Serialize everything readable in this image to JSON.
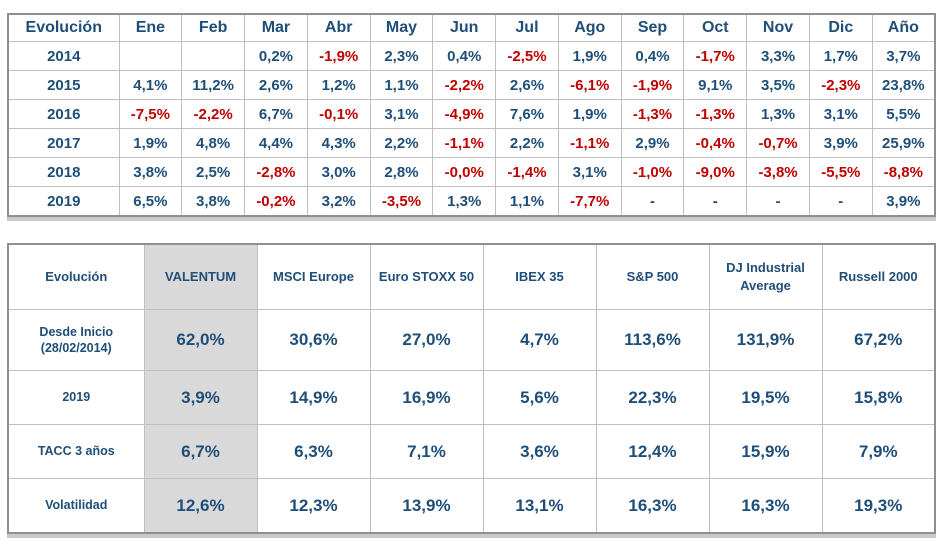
{
  "colors": {
    "positive_text": "#1f4e79",
    "negative_text": "#c00000",
    "highlight_bg": "#d9d9d9",
    "grid_line": "#bfbfbf",
    "outer_border": "#8f8f8f"
  },
  "monthly_table": {
    "title_header": "Evolución",
    "column_headers": [
      "Evolución",
      "Ene",
      "Feb",
      "Mar",
      "Abr",
      "May",
      "Jun",
      "Jul",
      "Ago",
      "Sep",
      "Oct",
      "Nov",
      "Dic",
      "Año"
    ],
    "rows": [
      {
        "year": "2014",
        "values": [
          "",
          "",
          "0,2%",
          "-1,9%",
          "2,3%",
          "0,4%",
          "-2,5%",
          "1,9%",
          "0,4%",
          "-1,7%",
          "3,3%",
          "1,7%",
          "3,7%"
        ]
      },
      {
        "year": "2015",
        "values": [
          "4,1%",
          "11,2%",
          "2,6%",
          "1,2%",
          "1,1%",
          "-2,2%",
          "2,6%",
          "-6,1%",
          "-1,9%",
          "9,1%",
          "3,5%",
          "-2,3%",
          "23,8%"
        ]
      },
      {
        "year": "2016",
        "values": [
          "-7,5%",
          "-2,2%",
          "6,7%",
          "-0,1%",
          "3,1%",
          "-4,9%",
          "7,6%",
          "1,9%",
          "-1,3%",
          "-1,3%",
          "1,3%",
          "3,1%",
          "5,5%"
        ]
      },
      {
        "year": "2017",
        "values": [
          "1,9%",
          "4,8%",
          "4,4%",
          "4,3%",
          "2,2%",
          "-1,1%",
          "2,2%",
          "-1,1%",
          "2,9%",
          "-0,4%",
          "-0,7%",
          "3,9%",
          "25,9%"
        ]
      },
      {
        "year": "2018",
        "values": [
          "3,8%",
          "2,5%",
          "-2,8%",
          "3,0%",
          "2,8%",
          "-0,0%",
          "-1,4%",
          "3,1%",
          "-1,0%",
          "-9,0%",
          "-3,8%",
          "-5,5%",
          "-8,8%"
        ]
      },
      {
        "year": "2019",
        "values": [
          "6,5%",
          "3,8%",
          "-0,2%",
          "3,2%",
          "-3,5%",
          "1,3%",
          "1,1%",
          "-7,7%",
          "-",
          "-",
          "-",
          "-",
          "3,9%"
        ]
      }
    ]
  },
  "comparison_table": {
    "column_headers": [
      "Evolución",
      "VALENTUM",
      "MSCI Europe",
      "Euro STOXX 50",
      "IBEX 35",
      "S&P 500",
      "DJ Industrial Average",
      "Russell 2000"
    ],
    "highlighted_column": "VALENTUM",
    "rows": [
      {
        "label_lines": [
          "Desde Inicio",
          "(28/02/2014)"
        ],
        "tall": true,
        "values": [
          "62,0%",
          "30,6%",
          "27,0%",
          "4,7%",
          "113,6%",
          "131,9%",
          "67,2%"
        ]
      },
      {
        "label_lines": [
          "2019"
        ],
        "tall": false,
        "values": [
          "3,9%",
          "14,9%",
          "16,9%",
          "5,6%",
          "22,3%",
          "19,5%",
          "15,8%"
        ]
      },
      {
        "label_lines": [
          "TACC 3 años"
        ],
        "tall": false,
        "values": [
          "6,7%",
          "6,3%",
          "7,1%",
          "3,6%",
          "12,4%",
          "15,9%",
          "7,9%"
        ]
      },
      {
        "label_lines": [
          "Volatilidad"
        ],
        "tall": false,
        "values": [
          "12,6%",
          "12,3%",
          "13,9%",
          "13,1%",
          "16,3%",
          "16,3%",
          "19,3%"
        ]
      }
    ]
  }
}
